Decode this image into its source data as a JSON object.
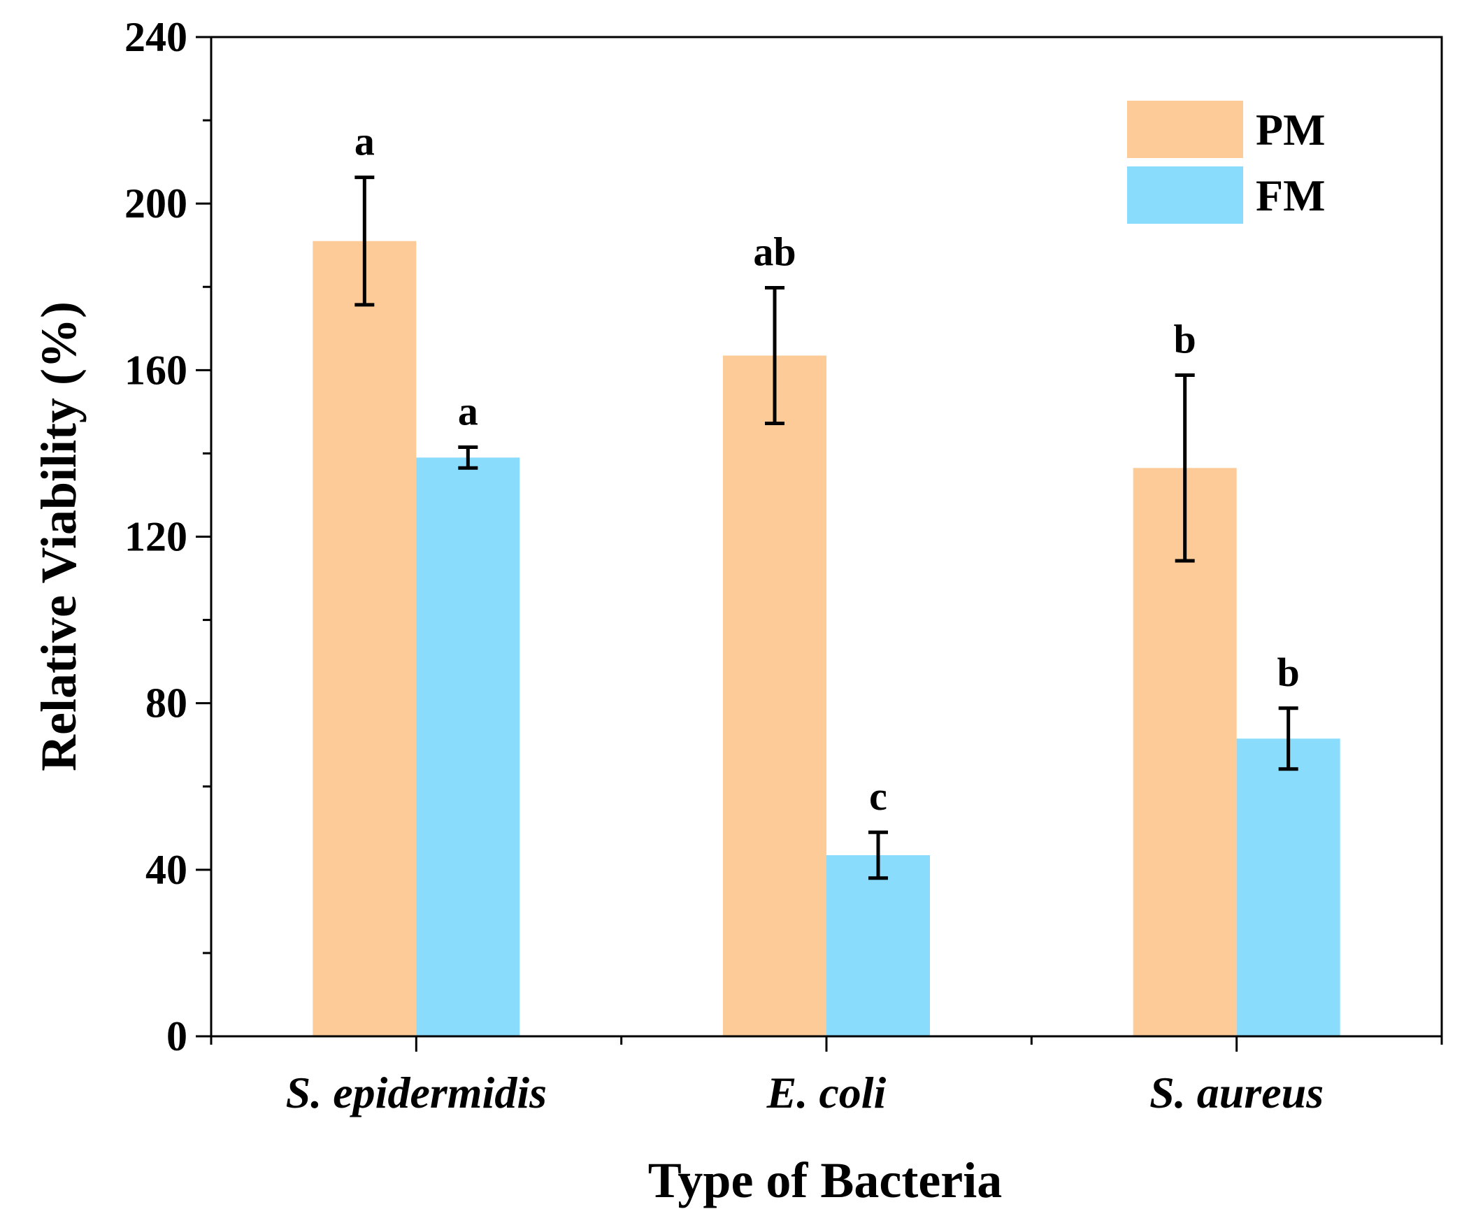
{
  "chart_data": {
    "type": "bar",
    "xlabel": "Type of Bacteria",
    "ylabel": "Relative Viability (%)",
    "ylim": [
      0,
      240
    ],
    "yticks": [
      0,
      40,
      80,
      120,
      160,
      200,
      240
    ],
    "categories": [
      "S. epidermidis",
      "E. coli",
      "S. aureus"
    ],
    "series": [
      {
        "name": "PM",
        "color": "#FDCB97",
        "values": [
          191,
          163.5,
          136.5
        ],
        "errors": [
          15.3,
          16.3,
          22.3
        ],
        "significance": [
          "a",
          "ab",
          "b"
        ]
      },
      {
        "name": "FM",
        "color": "#89DCFC",
        "values": [
          139,
          43.5,
          71.5
        ],
        "errors": [
          2.5,
          5.5,
          7.3
        ],
        "significance": [
          "a",
          "c",
          "b"
        ]
      }
    ],
    "legend": {
      "position": "top-right",
      "entries": [
        "PM",
        "FM"
      ]
    },
    "grid": false
  }
}
